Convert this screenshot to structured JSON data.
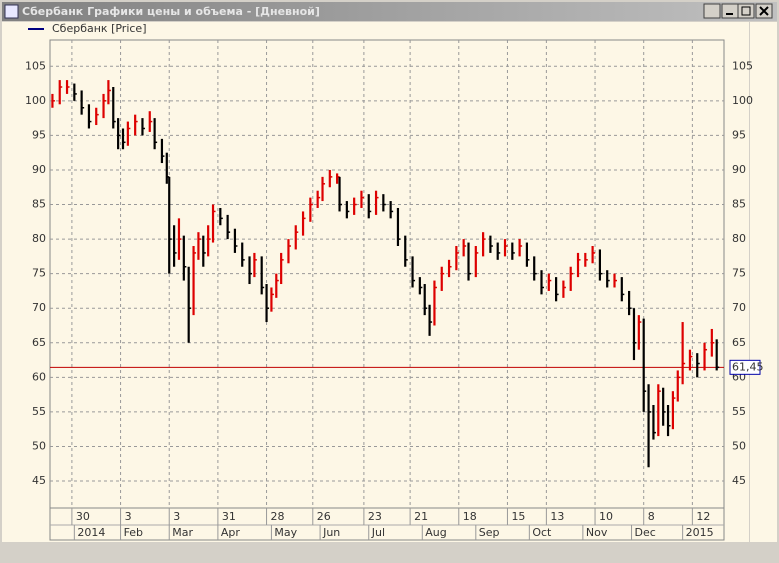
{
  "window": {
    "title": "Сбербанк Графики цены и объема - [Дневной]"
  },
  "chart_data": {
    "type": "ohlc",
    "xlim": [
      0,
      277
    ],
    "ylim": [
      41.1,
      108.8
    ],
    "yticks": [
      45,
      50,
      55,
      60,
      65,
      70,
      75,
      80,
      85,
      90,
      95,
      100,
      105
    ],
    "xticks": [
      {
        "value": 9,
        "label": "30"
      },
      {
        "value": 29,
        "label": "3"
      },
      {
        "value": 49,
        "label": "3"
      },
      {
        "value": 69,
        "label": "31"
      },
      {
        "value": 89,
        "label": "28"
      },
      {
        "value": 108,
        "label": "26"
      },
      {
        "value": 129,
        "label": "23"
      },
      {
        "value": 148,
        "label": "21"
      },
      {
        "value": 168,
        "label": "18"
      },
      {
        "value": 188,
        "label": "15"
      },
      {
        "value": 204,
        "label": "13"
      },
      {
        "value": 224,
        "label": "10"
      },
      {
        "value": 244,
        "label": "8"
      },
      {
        "value": 264,
        "label": "12"
      }
    ],
    "x_periods": [
      {
        "value": 10,
        "label": "2014"
      },
      {
        "value": 29,
        "label": "Feb"
      },
      {
        "value": 49,
        "label": "Mar"
      },
      {
        "value": 69,
        "label": "Apr"
      },
      {
        "value": 91,
        "label": "May"
      },
      {
        "value": 111,
        "label": "Jun"
      },
      {
        "value": 131,
        "label": "Jul"
      },
      {
        "value": 153,
        "label": "Aug"
      },
      {
        "value": 175,
        "label": "Sep"
      },
      {
        "value": 197,
        "label": "Oct"
      },
      {
        "value": 219,
        "label": "Nov"
      },
      {
        "value": 239,
        "label": "Dec"
      },
      {
        "value": 260,
        "label": "2015"
      }
    ],
    "grid": true,
    "series": [
      {
        "name": "Сбербанк [Price]",
        "color": "#000080",
        "up_color": "#dd0000",
        "down_color": "#000000",
        "x": [
          1,
          4,
          7,
          10,
          13,
          16,
          19,
          22,
          24,
          26,
          28,
          30,
          32,
          35,
          38,
          41,
          43,
          46,
          48,
          49,
          51,
          53,
          55,
          57,
          59,
          61,
          63,
          65,
          67,
          70,
          73,
          76,
          79,
          82,
          84,
          87,
          89,
          91,
          93,
          95,
          98,
          101,
          104,
          107,
          110,
          112,
          115,
          118,
          119,
          122,
          125,
          128,
          131,
          134,
          137,
          140,
          143,
          146,
          149,
          152,
          154,
          156,
          158,
          161,
          164,
          167,
          170,
          172,
          175,
          178,
          181,
          184,
          187,
          190,
          193,
          196,
          199,
          202,
          205,
          208,
          211,
          214,
          217,
          220,
          223,
          226,
          229,
          232,
          235,
          238,
          240,
          242,
          244,
          246,
          248,
          250,
          252,
          254,
          256,
          258,
          260,
          263,
          266,
          269,
          272,
          274
        ],
        "close": [
          100,
          102,
          102,
          101,
          99,
          97,
          98,
          100,
          101.5,
          97,
          95,
          94,
          96,
          97,
          96,
          97,
          94,
          92,
          89,
          80,
          78,
          80,
          76,
          70,
          78,
          80,
          78,
          80,
          84,
          83,
          81,
          79,
          77,
          75,
          77,
          73,
          70,
          72,
          74,
          77,
          79,
          81,
          83,
          85,
          86,
          88,
          89,
          89,
          85,
          84,
          85,
          86,
          84,
          86,
          85,
          84,
          80,
          77,
          74,
          73,
          70,
          68,
          73,
          75,
          76,
          78,
          79,
          75,
          78,
          80,
          79,
          78,
          79,
          78,
          79,
          77,
          75,
          73,
          74,
          72,
          73,
          75,
          77,
          77,
          78,
          75,
          74,
          74,
          72,
          70,
          65,
          68,
          58,
          55,
          52,
          58,
          55,
          53,
          57,
          60,
          62,
          63,
          62,
          64,
          65,
          61.45
        ],
        "high": [
          101,
          103,
          103,
          102.5,
          101.5,
          99.5,
          99,
          101,
          103,
          102,
          97.5,
          96,
          97,
          98,
          97.5,
          98.5,
          97.5,
          94.5,
          92.5,
          89,
          82,
          83,
          80.5,
          76,
          79,
          81,
          80.5,
          82,
          85,
          84.5,
          83.5,
          81.5,
          79.5,
          77.5,
          78,
          77.5,
          73.5,
          73,
          75,
          78,
          80,
          82,
          84,
          86,
          87,
          89,
          90,
          89.5,
          89,
          85.5,
          86,
          87,
          86.5,
          87,
          86.5,
          85.5,
          84.5,
          80.5,
          77.5,
          74.5,
          73.5,
          70.5,
          74,
          76,
          77,
          79,
          80,
          79.5,
          79,
          81,
          80.5,
          79.5,
          80,
          79.5,
          80,
          79.5,
          77.5,
          75.5,
          75,
          74.5,
          74,
          76,
          78,
          78,
          79,
          78.5,
          75.5,
          75,
          74.5,
          72.5,
          70,
          69,
          68.5,
          59,
          56,
          59,
          58.5,
          56,
          58,
          61,
          68,
          64,
          63.5,
          65,
          67,
          65.5
        ],
        "low": [
          99,
          99.5,
          101,
          100,
          98,
          96,
          96.5,
          97.5,
          99.5,
          96,
          93,
          93,
          93.5,
          95,
          95,
          95.5,
          93,
          91,
          88,
          75,
          76,
          77,
          74,
          65,
          69,
          77,
          76,
          77.5,
          79.5,
          82,
          80,
          78,
          76,
          73.5,
          74.5,
          72,
          68,
          69.5,
          71.5,
          73.5,
          76.5,
          78.5,
          80.5,
          82.5,
          84.5,
          85.5,
          87.5,
          88,
          84,
          83,
          83.5,
          84.5,
          83,
          83.5,
          84,
          83,
          79,
          76,
          73,
          72,
          69,
          66,
          67.5,
          72.5,
          74.5,
          75.5,
          77.5,
          74,
          74.5,
          77.5,
          78,
          77,
          77.5,
          77,
          77.5,
          76,
          74,
          72,
          72.5,
          71,
          71.5,
          72.5,
          74.5,
          76,
          76.5,
          74,
          73,
          73,
          71,
          69,
          62.5,
          64,
          55,
          47,
          51,
          51.5,
          53,
          51.5,
          52.5,
          56.5,
          59,
          61,
          60,
          61,
          63,
          61
        ]
      }
    ],
    "price_line": {
      "value": 61.45,
      "label": "61,45",
      "color": "#c00000"
    }
  }
}
